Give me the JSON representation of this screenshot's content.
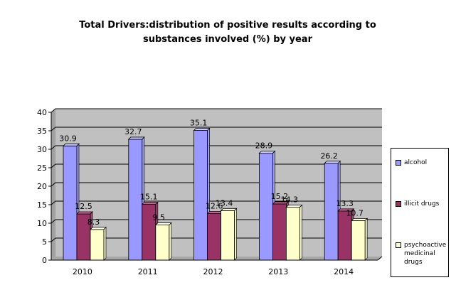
{
  "chart_data": {
    "type": "bar",
    "title_line1": "Total Drivers:distribution of positive results according to",
    "title_line2": "substances involved (%) by year",
    "categories": [
      "2010",
      "2011",
      "2012",
      "2013",
      "2014"
    ],
    "series": [
      {
        "name": "alcohol",
        "values": [
          30.9,
          32.7,
          35.1,
          28.9,
          26.2
        ],
        "color": "#9999ff",
        "top_color": "#ccccff"
      },
      {
        "name": "illicit drugs",
        "values": [
          12.5,
          15.1,
          12.6,
          15.2,
          13.3
        ],
        "color": "#993366",
        "top_color": "#c06690"
      },
      {
        "name": "psychoactive medicinal drugs",
        "values": [
          8.3,
          9.5,
          13.4,
          14.3,
          10.7
        ],
        "color": "#ffffcc",
        "top_color": "#ffffee"
      }
    ],
    "ylim": [
      0,
      40
    ],
    "yticks": [
      0,
      5,
      10,
      15,
      20,
      25,
      30,
      35,
      40
    ],
    "grid": true,
    "plot_background": "#c0c0c0",
    "legend_position": "right"
  }
}
